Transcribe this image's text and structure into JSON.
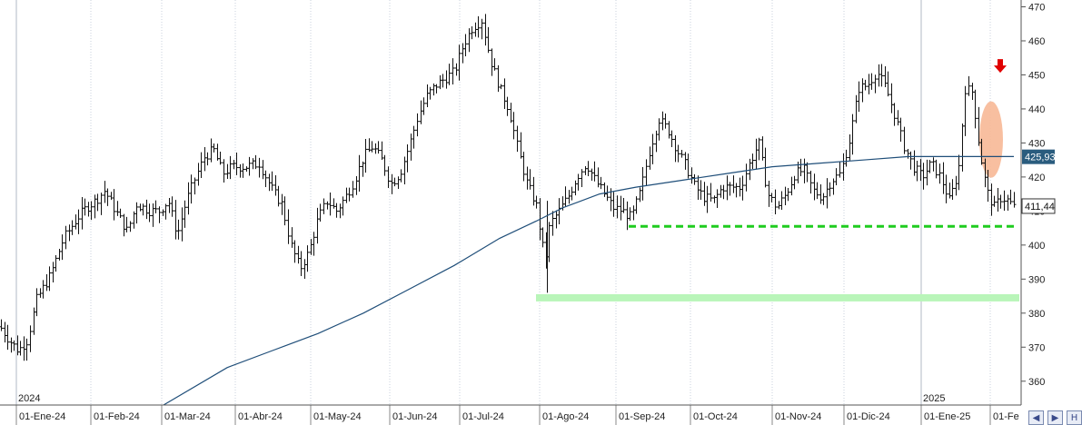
{
  "chart_data": {
    "type": "ohlc",
    "y_range": [
      353,
      472
    ],
    "y_ticks": [
      360,
      370,
      380,
      390,
      400,
      410,
      420,
      430,
      440,
      450,
      460,
      470
    ],
    "x_tick_labels": [
      "01-Ene-24",
      "01-Feb-24",
      "01-Mar-24",
      "01-Abr-24",
      "01-May-24",
      "01-Jun-24",
      "01-Jul-24",
      "01-Ago-24",
      "01-Sep-24",
      "01-Oct-24",
      "01-Nov-24",
      "01-Dic-24",
      "01-Ene-25",
      "01-Fe"
    ],
    "year_labels": [
      "2024",
      "2025"
    ],
    "current_price_label": "411,44",
    "moving_average_label": "425,93",
    "grid": "vertical",
    "colors": {
      "bars": "#111111",
      "moving_average": "#1f4e79",
      "support_dashed": "#1fcc1f",
      "support_band": "#b9f5b9",
      "ellipse": "#f7b896",
      "arrow": "#e00000",
      "ma_tag": "#2a5c7e"
    },
    "anchors": [
      [
        0,
        376
      ],
      [
        10,
        372
      ],
      [
        20,
        369
      ],
      [
        30,
        372
      ],
      [
        40,
        384
      ],
      [
        55,
        391
      ],
      [
        70,
        402
      ],
      [
        85,
        408
      ],
      [
        95,
        411
      ],
      [
        105,
        413
      ],
      [
        115,
        416
      ],
      [
        125,
        411
      ],
      [
        140,
        404
      ],
      [
        150,
        412
      ],
      [
        165,
        410
      ],
      [
        175,
        410
      ],
      [
        185,
        413
      ],
      [
        195,
        403
      ],
      [
        205,
        413
      ],
      [
        215,
        420
      ],
      [
        225,
        426
      ],
      [
        235,
        428
      ],
      [
        245,
        421
      ],
      [
        255,
        423
      ],
      [
        270,
        423
      ],
      [
        285,
        424
      ],
      [
        300,
        416
      ],
      [
        310,
        412
      ],
      [
        320,
        400
      ],
      [
        330,
        393
      ],
      [
        340,
        398
      ],
      [
        350,
        408
      ],
      [
        360,
        413
      ],
      [
        370,
        410
      ],
      [
        380,
        414
      ],
      [
        390,
        419
      ],
      [
        400,
        426
      ],
      [
        410,
        429
      ],
      [
        420,
        425
      ],
      [
        430,
        418
      ],
      [
        440,
        421
      ],
      [
        450,
        429
      ],
      [
        460,
        438
      ],
      [
        470,
        444
      ],
      [
        480,
        447
      ],
      [
        490,
        449
      ],
      [
        500,
        451
      ],
      [
        510,
        459
      ],
      [
        520,
        464
      ],
      [
        530,
        466
      ],
      [
        540,
        454
      ],
      [
        550,
        446
      ],
      [
        560,
        440
      ],
      [
        570,
        428
      ],
      [
        580,
        418
      ],
      [
        590,
        412
      ],
      [
        600,
        395
      ],
      [
        605,
        406
      ],
      [
        615,
        410
      ],
      [
        625,
        414
      ],
      [
        635,
        420
      ],
      [
        645,
        424
      ],
      [
        655,
        419
      ],
      [
        665,
        415
      ],
      [
        675,
        411
      ],
      [
        685,
        410
      ],
      [
        695,
        408
      ],
      [
        705,
        416
      ],
      [
        715,
        428
      ],
      [
        725,
        437
      ],
      [
        735,
        434
      ],
      [
        745,
        428
      ],
      [
        755,
        423
      ],
      [
        765,
        417
      ],
      [
        775,
        414
      ],
      [
        785,
        413
      ],
      [
        795,
        417
      ],
      [
        805,
        417
      ],
      [
        815,
        417
      ],
      [
        825,
        424
      ],
      [
        835,
        430
      ],
      [
        845,
        415
      ],
      [
        855,
        411
      ],
      [
        865,
        415
      ],
      [
        875,
        421
      ],
      [
        885,
        422
      ],
      [
        895,
        416
      ],
      [
        905,
        414
      ],
      [
        915,
        419
      ],
      [
        925,
        421
      ],
      [
        935,
        431
      ],
      [
        945,
        446
      ],
      [
        955,
        447
      ],
      [
        965,
        451
      ],
      [
        975,
        446
      ],
      [
        985,
        438
      ],
      [
        995,
        429
      ],
      [
        1005,
        423
      ],
      [
        1015,
        420
      ],
      [
        1025,
        424
      ],
      [
        1035,
        420
      ],
      [
        1045,
        413
      ],
      [
        1055,
        422
      ],
      [
        1062,
        446
      ],
      [
        1070,
        445
      ],
      [
        1078,
        428
      ],
      [
        1086,
        416
      ],
      [
        1094,
        411
      ],
      [
        1102,
        414
      ],
      [
        1110,
        413
      ],
      [
        1116,
        411
      ]
    ],
    "moving_average": [
      [
        180,
        353
      ],
      [
        250,
        364
      ],
      [
        300,
        369
      ],
      [
        350,
        374
      ],
      [
        400,
        380
      ],
      [
        450,
        387
      ],
      [
        500,
        394
      ],
      [
        550,
        402
      ],
      [
        590,
        407
      ],
      [
        620,
        411
      ],
      [
        660,
        415
      ],
      [
        700,
        417
      ],
      [
        750,
        419
      ],
      [
        800,
        421
      ],
      [
        850,
        423
      ],
      [
        900,
        424
      ],
      [
        950,
        425
      ],
      [
        1000,
        426
      ],
      [
        1050,
        426
      ],
      [
        1116,
        426
      ]
    ],
    "support_dashed_level": 405.5,
    "support_band_level": 384.5
  }
}
